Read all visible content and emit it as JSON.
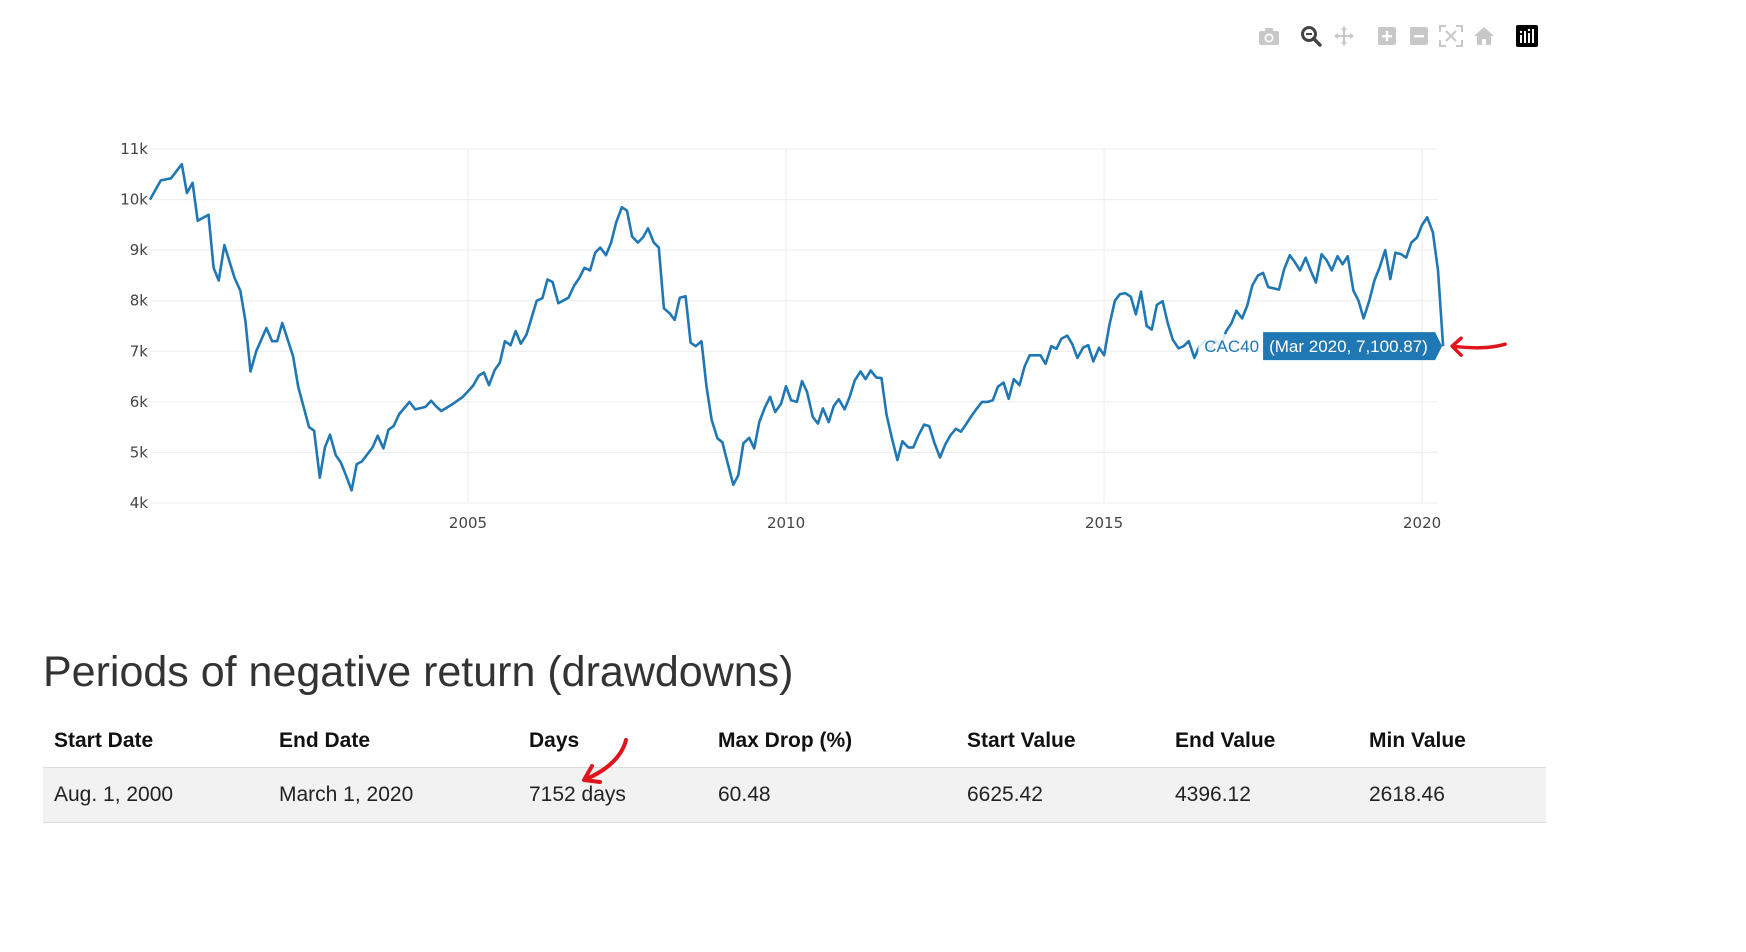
{
  "toolbar": {
    "icons": [
      "camera-icon",
      "zoom-icon",
      "pan-icon",
      "zoom-in-icon",
      "zoom-out-icon",
      "autoscale-icon",
      "reset-axes-icon",
      "plotly-logo-icon"
    ],
    "active": "zoom-icon"
  },
  "chart_data": {
    "type": "line",
    "title": "",
    "xlabel": "",
    "ylabel": "",
    "xlim": [
      2000.0,
      2020.25
    ],
    "ylim": [
      4000,
      11000
    ],
    "x_ticks": [
      {
        "value": 2005,
        "label": "2005"
      },
      {
        "value": 2010,
        "label": "2010"
      },
      {
        "value": 2015,
        "label": "2015"
      },
      {
        "value": 2020,
        "label": "2020"
      }
    ],
    "y_ticks": [
      {
        "value": 4000,
        "label": "4k"
      },
      {
        "value": 5000,
        "label": "5k"
      },
      {
        "value": 6000,
        "label": "6k"
      },
      {
        "value": 7000,
        "label": "7k"
      },
      {
        "value": 8000,
        "label": "8k"
      },
      {
        "value": 9000,
        "label": "9k"
      },
      {
        "value": 10000,
        "label": "10k"
      },
      {
        "value": 11000,
        "label": "11k"
      }
    ],
    "grid": true,
    "line_color": "#1f77b4",
    "series": [
      {
        "name": "CAC40",
        "points": [
          [
            2000.0,
            10000
          ],
          [
            2000.17,
            10380
          ],
          [
            2000.33,
            10420
          ],
          [
            2000.5,
            10700
          ],
          [
            2000.58,
            10130
          ],
          [
            2000.67,
            10330
          ],
          [
            2000.75,
            9580
          ],
          [
            2000.92,
            9700
          ],
          [
            2001.0,
            8650
          ],
          [
            2001.08,
            8400
          ],
          [
            2001.17,
            9100
          ],
          [
            2001.33,
            8450
          ],
          [
            2001.42,
            8200
          ],
          [
            2001.5,
            7600
          ],
          [
            2001.58,
            6600
          ],
          [
            2001.67,
            7000
          ],
          [
            2001.83,
            7460
          ],
          [
            2001.92,
            7200
          ],
          [
            2002.0,
            7200
          ],
          [
            2002.08,
            7560
          ],
          [
            2002.25,
            6900
          ],
          [
            2002.33,
            6300
          ],
          [
            2002.5,
            5500
          ],
          [
            2002.58,
            5430
          ],
          [
            2002.67,
            4500
          ],
          [
            2002.75,
            5100
          ],
          [
            2002.83,
            5350
          ],
          [
            2002.92,
            4950
          ],
          [
            2003.0,
            4800
          ],
          [
            2003.08,
            4550
          ],
          [
            2003.17,
            4250
          ],
          [
            2003.25,
            4770
          ],
          [
            2003.33,
            4820
          ],
          [
            2003.5,
            5100
          ],
          [
            2003.58,
            5330
          ],
          [
            2003.67,
            5080
          ],
          [
            2003.75,
            5450
          ],
          [
            2003.83,
            5520
          ],
          [
            2003.92,
            5760
          ],
          [
            2004.08,
            6000
          ],
          [
            2004.17,
            5850
          ],
          [
            2004.33,
            5900
          ],
          [
            2004.42,
            6020
          ],
          [
            2004.5,
            5910
          ],
          [
            2004.58,
            5820
          ],
          [
            2004.75,
            5950
          ],
          [
            2004.92,
            6100
          ],
          [
            2005.08,
            6320
          ],
          [
            2005.17,
            6520
          ],
          [
            2005.25,
            6580
          ],
          [
            2005.33,
            6330
          ],
          [
            2005.42,
            6630
          ],
          [
            2005.5,
            6770
          ],
          [
            2005.58,
            7200
          ],
          [
            2005.67,
            7120
          ],
          [
            2005.75,
            7400
          ],
          [
            2005.83,
            7150
          ],
          [
            2005.92,
            7330
          ],
          [
            2006.08,
            8000
          ],
          [
            2006.17,
            8050
          ],
          [
            2006.25,
            8420
          ],
          [
            2006.33,
            8370
          ],
          [
            2006.42,
            7950
          ],
          [
            2006.58,
            8060
          ],
          [
            2006.67,
            8300
          ],
          [
            2006.75,
            8450
          ],
          [
            2006.83,
            8650
          ],
          [
            2006.92,
            8600
          ],
          [
            2007.0,
            8950
          ],
          [
            2007.08,
            9050
          ],
          [
            2007.17,
            8900
          ],
          [
            2007.25,
            9150
          ],
          [
            2007.33,
            9550
          ],
          [
            2007.42,
            9850
          ],
          [
            2007.5,
            9780
          ],
          [
            2007.58,
            9270
          ],
          [
            2007.67,
            9150
          ],
          [
            2007.75,
            9250
          ],
          [
            2007.83,
            9430
          ],
          [
            2007.92,
            9150
          ],
          [
            2008.0,
            9050
          ],
          [
            2008.08,
            7850
          ],
          [
            2008.17,
            7750
          ],
          [
            2008.25,
            7620
          ],
          [
            2008.33,
            8060
          ],
          [
            2008.42,
            8090
          ],
          [
            2008.5,
            7170
          ],
          [
            2008.58,
            7100
          ],
          [
            2008.67,
            7200
          ],
          [
            2008.75,
            6300
          ],
          [
            2008.83,
            5650
          ],
          [
            2008.92,
            5280
          ],
          [
            2009.0,
            5200
          ],
          [
            2009.08,
            4800
          ],
          [
            2009.17,
            4360
          ],
          [
            2009.25,
            4550
          ],
          [
            2009.33,
            5180
          ],
          [
            2009.42,
            5290
          ],
          [
            2009.5,
            5080
          ],
          [
            2009.58,
            5600
          ],
          [
            2009.67,
            5900
          ],
          [
            2009.75,
            6100
          ],
          [
            2009.83,
            5800
          ],
          [
            2009.92,
            5960
          ],
          [
            2010.0,
            6310
          ],
          [
            2010.08,
            6030
          ],
          [
            2010.17,
            6000
          ],
          [
            2010.25,
            6410
          ],
          [
            2010.33,
            6200
          ],
          [
            2010.42,
            5700
          ],
          [
            2010.5,
            5570
          ],
          [
            2010.58,
            5870
          ],
          [
            2010.67,
            5600
          ],
          [
            2010.75,
            5920
          ],
          [
            2010.83,
            6050
          ],
          [
            2010.92,
            5850
          ],
          [
            2011.0,
            6100
          ],
          [
            2011.08,
            6420
          ],
          [
            2011.17,
            6600
          ],
          [
            2011.25,
            6450
          ],
          [
            2011.33,
            6620
          ],
          [
            2011.42,
            6480
          ],
          [
            2011.5,
            6470
          ],
          [
            2011.58,
            5750
          ],
          [
            2011.67,
            5250
          ],
          [
            2011.75,
            4850
          ],
          [
            2011.83,
            5220
          ],
          [
            2011.92,
            5100
          ],
          [
            2012.0,
            5100
          ],
          [
            2012.08,
            5330
          ],
          [
            2012.17,
            5550
          ],
          [
            2012.25,
            5520
          ],
          [
            2012.33,
            5200
          ],
          [
            2012.42,
            4900
          ],
          [
            2012.5,
            5150
          ],
          [
            2012.58,
            5330
          ],
          [
            2012.67,
            5470
          ],
          [
            2012.75,
            5410
          ],
          [
            2012.83,
            5560
          ],
          [
            2012.92,
            5730
          ],
          [
            2013.0,
            5870
          ],
          [
            2013.08,
            6000
          ],
          [
            2013.17,
            6000
          ],
          [
            2013.25,
            6030
          ],
          [
            2013.33,
            6300
          ],
          [
            2013.42,
            6380
          ],
          [
            2013.5,
            6060
          ],
          [
            2013.58,
            6450
          ],
          [
            2013.67,
            6330
          ],
          [
            2013.75,
            6700
          ],
          [
            2013.83,
            6920
          ],
          [
            2014.0,
            6920
          ],
          [
            2014.08,
            6750
          ],
          [
            2014.17,
            7100
          ],
          [
            2014.25,
            7050
          ],
          [
            2014.33,
            7250
          ],
          [
            2014.42,
            7310
          ],
          [
            2014.5,
            7140
          ],
          [
            2014.58,
            6870
          ],
          [
            2014.67,
            7070
          ],
          [
            2014.75,
            7120
          ],
          [
            2014.83,
            6800
          ],
          [
            2014.92,
            7070
          ],
          [
            2015.0,
            6920
          ],
          [
            2015.08,
            7500
          ],
          [
            2015.17,
            8000
          ],
          [
            2015.25,
            8130
          ],
          [
            2015.33,
            8150
          ],
          [
            2015.42,
            8080
          ],
          [
            2015.5,
            7730
          ],
          [
            2015.58,
            8180
          ],
          [
            2015.67,
            7500
          ],
          [
            2015.75,
            7430
          ],
          [
            2015.83,
            7920
          ],
          [
            2015.92,
            7990
          ],
          [
            2016.0,
            7560
          ],
          [
            2016.08,
            7230
          ],
          [
            2016.17,
            7060
          ],
          [
            2016.25,
            7100
          ],
          [
            2016.33,
            7200
          ],
          [
            2016.42,
            6870
          ],
          [
            2016.5,
            7100
          ],
          [
            2016.58,
            7200
          ],
          [
            2016.67,
            7050
          ],
          [
            2016.75,
            7230
          ],
          [
            2016.83,
            7080
          ],
          [
            2016.92,
            7400
          ],
          [
            2017.0,
            7550
          ],
          [
            2017.08,
            7800
          ],
          [
            2017.17,
            7650
          ],
          [
            2017.25,
            7900
          ],
          [
            2017.33,
            8300
          ],
          [
            2017.42,
            8500
          ],
          [
            2017.5,
            8550
          ],
          [
            2017.58,
            8270
          ],
          [
            2017.75,
            8220
          ],
          [
            2017.83,
            8620
          ],
          [
            2017.92,
            8900
          ],
          [
            2018.0,
            8760
          ],
          [
            2018.08,
            8600
          ],
          [
            2018.17,
            8850
          ],
          [
            2018.25,
            8590
          ],
          [
            2018.33,
            8360
          ],
          [
            2018.42,
            8920
          ],
          [
            2018.5,
            8800
          ],
          [
            2018.58,
            8600
          ],
          [
            2018.67,
            8880
          ],
          [
            2018.75,
            8720
          ],
          [
            2018.83,
            8880
          ],
          [
            2018.92,
            8200
          ],
          [
            2019.0,
            8000
          ],
          [
            2019.08,
            7650
          ],
          [
            2019.17,
            8000
          ],
          [
            2019.25,
            8400
          ],
          [
            2019.33,
            8650
          ],
          [
            2019.42,
            9000
          ],
          [
            2019.5,
            8430
          ],
          [
            2019.58,
            8950
          ],
          [
            2019.67,
            8920
          ],
          [
            2019.75,
            8850
          ],
          [
            2019.83,
            9150
          ],
          [
            2019.92,
            9250
          ],
          [
            2020.0,
            9500
          ],
          [
            2020.08,
            9650
          ],
          [
            2020.17,
            9350
          ],
          [
            2020.25,
            8600
          ],
          [
            2020.33,
            7100.87
          ]
        ]
      }
    ],
    "tooltip": {
      "series_label": "CAC40",
      "value_label": "(Mar 2020, 7,100.87)",
      "x": 2020.33,
      "y": 7100.87
    }
  },
  "section_title": "Periods of negative return (drawdowns)",
  "table": {
    "columns": [
      "Start Date",
      "End Date",
      "Days",
      "Max Drop (%)",
      "Start Value",
      "End Value",
      "Min Value"
    ],
    "rows": [
      [
        "Aug. 1, 2000",
        "March 1, 2020",
        "7152 days",
        "60.48",
        "6625.42",
        "4396.12",
        "2618.46"
      ]
    ]
  },
  "annotations": {
    "marker_color": "#e0141c"
  }
}
